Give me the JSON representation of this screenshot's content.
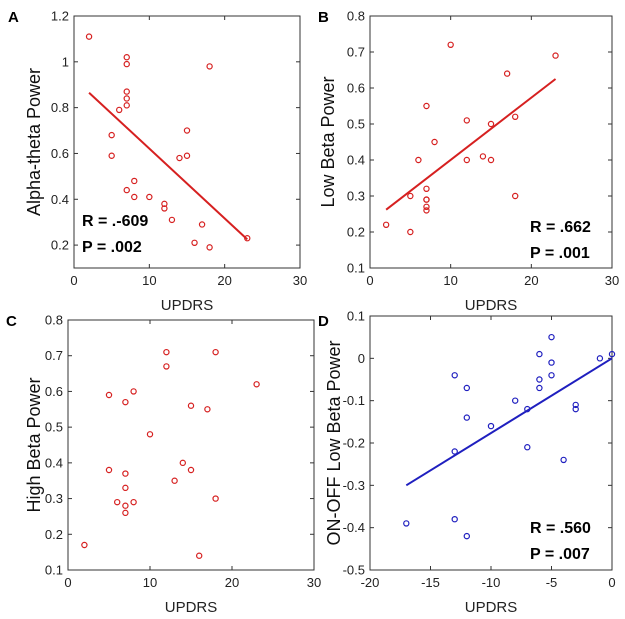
{
  "chart_data": [
    {
      "panel_label": "A",
      "type": "scatter",
      "xlabel": "UPDRS",
      "ylabel": "Alpha-theta Power",
      "xlim": [
        0,
        30
      ],
      "ylim": [
        0.1,
        1.2
      ],
      "xticks": [
        "0",
        "10",
        "20",
        "30"
      ],
      "yticks": [
        "0.2",
        "0.4",
        "0.6",
        "0.8",
        "1",
        "1.2"
      ],
      "color": "#d62020",
      "points": [
        [
          2,
          1.11
        ],
        [
          5,
          0.68
        ],
        [
          5,
          0.59
        ],
        [
          6,
          0.79
        ],
        [
          7,
          1.02
        ],
        [
          7,
          0.99
        ],
        [
          7,
          0.87
        ],
        [
          7,
          0.84
        ],
        [
          7,
          0.81
        ],
        [
          7,
          0.44
        ],
        [
          8,
          0.48
        ],
        [
          8,
          0.41
        ],
        [
          10,
          0.41
        ],
        [
          12,
          0.38
        ],
        [
          12,
          0.36
        ],
        [
          13,
          0.31
        ],
        [
          14,
          0.58
        ],
        [
          15,
          0.7
        ],
        [
          15,
          0.59
        ],
        [
          16,
          0.21
        ],
        [
          17,
          0.29
        ],
        [
          18,
          0.98
        ],
        [
          18,
          0.19
        ],
        [
          23,
          0.23
        ]
      ],
      "fit_line": [
        [
          2,
          0.865
        ],
        [
          23,
          0.225
        ]
      ],
      "stats": {
        "r": "R = .-609",
        "p": "P = .002"
      }
    },
    {
      "panel_label": "B",
      "type": "scatter",
      "xlabel": "UPDRS",
      "ylabel": "Low Beta Power",
      "xlim": [
        0,
        30
      ],
      "ylim": [
        0.1,
        0.8
      ],
      "xticks": [
        "0",
        "10",
        "20",
        "30"
      ],
      "yticks": [
        "0.1",
        "0.2",
        "0.3",
        "0.4",
        "0.5",
        "0.6",
        "0.7",
        "0.8"
      ],
      "color": "#d62020",
      "points": [
        [
          2,
          0.22
        ],
        [
          5,
          0.3
        ],
        [
          5,
          0.2
        ],
        [
          6,
          0.4
        ],
        [
          7,
          0.55
        ],
        [
          7,
          0.32
        ],
        [
          7,
          0.29
        ],
        [
          7,
          0.29
        ],
        [
          7,
          0.27
        ],
        [
          7,
          0.26
        ],
        [
          8,
          0.45
        ],
        [
          10,
          0.72
        ],
        [
          12,
          0.51
        ],
        [
          12,
          0.4
        ],
        [
          14,
          0.41
        ],
        [
          15,
          0.5
        ],
        [
          15,
          0.4
        ],
        [
          17,
          0.64
        ],
        [
          18,
          0.52
        ],
        [
          18,
          0.3
        ],
        [
          23,
          0.69
        ]
      ],
      "fit_line": [
        [
          2,
          0.262
        ],
        [
          23,
          0.625
        ]
      ],
      "stats": {
        "r": "R = .662",
        "p": "P = .001"
      }
    },
    {
      "panel_label": "C",
      "type": "scatter",
      "xlabel": "UPDRS",
      "ylabel": "High Beta Power",
      "xlim": [
        0,
        30
      ],
      "ylim": [
        0.1,
        0.8
      ],
      "xticks": [
        "0",
        "10",
        "20",
        "30"
      ],
      "yticks": [
        "0.1",
        "0.2",
        "0.3",
        "0.4",
        "0.5",
        "0.6",
        "0.7",
        "0.8"
      ],
      "color": "#d62020",
      "points": [
        [
          2,
          0.17
        ],
        [
          5,
          0.59
        ],
        [
          5,
          0.38
        ],
        [
          6,
          0.29
        ],
        [
          7,
          0.57
        ],
        [
          7,
          0.37
        ],
        [
          7,
          0.33
        ],
        [
          7,
          0.28
        ],
        [
          7,
          0.26
        ],
        [
          8,
          0.6
        ],
        [
          8,
          0.29
        ],
        [
          10,
          0.48
        ],
        [
          12,
          0.71
        ],
        [
          12,
          0.67
        ],
        [
          13,
          0.35
        ],
        [
          14,
          0.4
        ],
        [
          15,
          0.56
        ],
        [
          15,
          0.38
        ],
        [
          16,
          0.14
        ],
        [
          17,
          0.55
        ],
        [
          18,
          0.71
        ],
        [
          18,
          0.3
        ],
        [
          23,
          0.62
        ]
      ],
      "stats": {
        "r": "",
        "p": ""
      }
    },
    {
      "panel_label": "D",
      "type": "scatter",
      "xlabel": "UPDRS",
      "ylabel": "ON-OFF Low Beta Power",
      "xlim": [
        -20,
        0
      ],
      "ylim": [
        -0.5,
        0.1
      ],
      "xticks": [
        "-20",
        "-15",
        "-10",
        "-5",
        "0"
      ],
      "yticks": [
        "-0.5",
        "-0.4",
        "-0.3",
        "-0.2",
        "-0.1",
        "0",
        "0.1"
      ],
      "color": "#1f1fbf",
      "points": [
        [
          -17,
          -0.39
        ],
        [
          -13,
          -0.04
        ],
        [
          -13,
          -0.22
        ],
        [
          -13,
          -0.38
        ],
        [
          -12,
          -0.07
        ],
        [
          -12,
          -0.14
        ],
        [
          -12,
          -0.42
        ],
        [
          -10,
          -0.16
        ],
        [
          -8,
          -0.1
        ],
        [
          -7,
          -0.12
        ],
        [
          -7,
          -0.21
        ],
        [
          -6,
          0.01
        ],
        [
          -6,
          -0.05
        ],
        [
          -6,
          -0.07
        ],
        [
          -5,
          0.05
        ],
        [
          -5,
          -0.01
        ],
        [
          -5,
          -0.04
        ],
        [
          -4,
          -0.24
        ],
        [
          -3,
          -0.11
        ],
        [
          -3,
          -0.12
        ],
        [
          -1,
          0.0
        ],
        [
          0,
          0.01
        ]
      ],
      "fit_line": [
        [
          -17,
          -0.3
        ],
        [
          0,
          0.0
        ]
      ],
      "stats": {
        "r": "R = .560",
        "p": "P = .007"
      }
    }
  ]
}
